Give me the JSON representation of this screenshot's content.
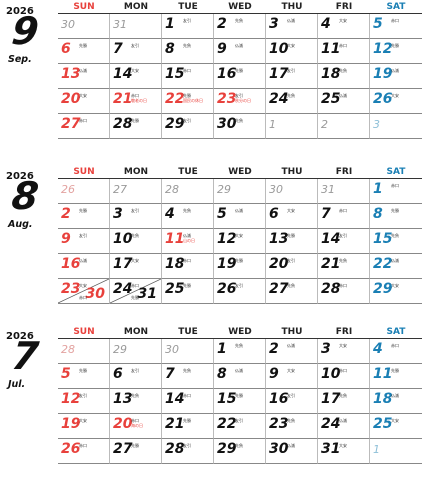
{
  "weekdays": [
    "SUN",
    "MON",
    "TUE",
    "WED",
    "THU",
    "FRI",
    "SAT"
  ],
  "months": [
    {
      "year": "2026",
      "num": "9",
      "abbr": "Sep.",
      "days": [
        {
          "d": "30",
          "c": "grey"
        },
        {
          "d": "31",
          "c": "grey"
        },
        {
          "d": "1",
          "c": "black",
          "r": "友引"
        },
        {
          "d": "2",
          "c": "black",
          "r": "先負"
        },
        {
          "d": "3",
          "c": "black",
          "r": "仏滅"
        },
        {
          "d": "4",
          "c": "black",
          "r": "大安"
        },
        {
          "d": "5",
          "c": "blue",
          "r": "赤口"
        },
        {
          "d": "6",
          "c": "red",
          "r": "先勝"
        },
        {
          "d": "7",
          "c": "black",
          "r": "友引"
        },
        {
          "d": "8",
          "c": "black",
          "r": "先負"
        },
        {
          "d": "9",
          "c": "black",
          "r": "仏滅"
        },
        {
          "d": "10",
          "c": "black",
          "r": "大安"
        },
        {
          "d": "11",
          "c": "black",
          "r": "赤口"
        },
        {
          "d": "12",
          "c": "blue",
          "r": "先勝"
        },
        {
          "d": "13",
          "c": "red",
          "r": "仏滅"
        },
        {
          "d": "14",
          "c": "black",
          "r": "大安"
        },
        {
          "d": "15",
          "c": "black",
          "r": "赤口"
        },
        {
          "d": "16",
          "c": "black",
          "r": "先勝"
        },
        {
          "d": "17",
          "c": "black",
          "r": "友引"
        },
        {
          "d": "18",
          "c": "black",
          "r": "先負"
        },
        {
          "d": "19",
          "c": "blue",
          "r": "仏滅"
        },
        {
          "d": "20",
          "c": "red",
          "r": "大安"
        },
        {
          "d": "21",
          "c": "red",
          "r": "赤口",
          "h": "敬老の日"
        },
        {
          "d": "22",
          "c": "red",
          "r": "先勝",
          "h": "国民の休日"
        },
        {
          "d": "23",
          "c": "red",
          "r": "友引",
          "h": "秋分の日"
        },
        {
          "d": "24",
          "c": "black",
          "r": "先負"
        },
        {
          "d": "25",
          "c": "black",
          "r": "仏滅"
        },
        {
          "d": "26",
          "c": "blue",
          "r": "大安"
        },
        {
          "d": "27",
          "c": "red",
          "r": "赤口"
        },
        {
          "d": "28",
          "c": "black",
          "r": "先勝"
        },
        {
          "d": "29",
          "c": "black",
          "r": "友引"
        },
        {
          "d": "30",
          "c": "black",
          "r": "先負"
        },
        {
          "d": "1",
          "c": "grey"
        },
        {
          "d": "2",
          "c": "grey"
        },
        {
          "d": "3",
          "c": "grey-blue"
        }
      ]
    },
    {
      "year": "2026",
      "num": "8",
      "abbr": "Aug.",
      "days": [
        {
          "d": "26",
          "c": "grey-red"
        },
        {
          "d": "27",
          "c": "grey"
        },
        {
          "d": "28",
          "c": "grey"
        },
        {
          "d": "29",
          "c": "grey"
        },
        {
          "d": "30",
          "c": "grey"
        },
        {
          "d": "31",
          "c": "grey"
        },
        {
          "d": "1",
          "c": "blue",
          "r": "赤口"
        },
        {
          "d": "2",
          "c": "red",
          "r": "先勝"
        },
        {
          "d": "3",
          "c": "black",
          "r": "友引"
        },
        {
          "d": "4",
          "c": "black",
          "r": "先負"
        },
        {
          "d": "5",
          "c": "black",
          "r": "仏滅"
        },
        {
          "d": "6",
          "c": "black",
          "r": "大安"
        },
        {
          "d": "7",
          "c": "black",
          "r": "赤口"
        },
        {
          "d": "8",
          "c": "blue",
          "r": "先勝"
        },
        {
          "d": "9",
          "c": "red",
          "r": "友引"
        },
        {
          "d": "10",
          "c": "black",
          "r": "先負"
        },
        {
          "d": "11",
          "c": "red",
          "r": "仏滅",
          "h": "山の日"
        },
        {
          "d": "12",
          "c": "black",
          "r": "大安"
        },
        {
          "d": "13",
          "c": "black",
          "r": "先勝"
        },
        {
          "d": "14",
          "c": "black",
          "r": "友引"
        },
        {
          "d": "15",
          "c": "blue",
          "r": "先負"
        },
        {
          "d": "16",
          "c": "red",
          "r": "仏滅"
        },
        {
          "d": "17",
          "c": "black",
          "r": "大安"
        },
        {
          "d": "18",
          "c": "black",
          "r": "赤口"
        },
        {
          "d": "19",
          "c": "black",
          "r": "先勝"
        },
        {
          "d": "20",
          "c": "black",
          "r": "友引"
        },
        {
          "d": "21",
          "c": "black",
          "r": "先負"
        },
        {
          "d": "22",
          "c": "blue",
          "r": "仏滅"
        },
        {
          "d": "23",
          "c": "red",
          "r": "大安",
          "d2": "30",
          "c2": "red",
          "r2": "赤口"
        },
        {
          "d": "24",
          "c": "black",
          "r": "赤口",
          "d2": "31",
          "c2": "black",
          "r2": "先勝"
        },
        {
          "d": "25",
          "c": "black",
          "r": "先勝"
        },
        {
          "d": "26",
          "c": "black",
          "r": "友引"
        },
        {
          "d": "27",
          "c": "black",
          "r": "先負"
        },
        {
          "d": "28",
          "c": "black",
          "r": "赤口"
        },
        {
          "d": "29",
          "c": "blue",
          "r": "大安"
        }
      ]
    },
    {
      "year": "2026",
      "num": "7",
      "abbr": "Jul.",
      "days": [
        {
          "d": "28",
          "c": "grey-red"
        },
        {
          "d": "29",
          "c": "grey"
        },
        {
          "d": "30",
          "c": "grey"
        },
        {
          "d": "1",
          "c": "black",
          "r": "先負"
        },
        {
          "d": "2",
          "c": "black",
          "r": "仏滅"
        },
        {
          "d": "3",
          "c": "black",
          "r": "大安"
        },
        {
          "d": "4",
          "c": "blue",
          "r": "赤口"
        },
        {
          "d": "5",
          "c": "red",
          "r": "先勝"
        },
        {
          "d": "6",
          "c": "black",
          "r": "友引"
        },
        {
          "d": "7",
          "c": "black",
          "r": "先負"
        },
        {
          "d": "8",
          "c": "black",
          "r": "仏滅"
        },
        {
          "d": "9",
          "c": "black",
          "r": "大安"
        },
        {
          "d": "10",
          "c": "black",
          "r": "赤口"
        },
        {
          "d": "11",
          "c": "blue",
          "r": "先勝"
        },
        {
          "d": "12",
          "c": "red",
          "r": "友引"
        },
        {
          "d": "13",
          "c": "black",
          "r": "先負"
        },
        {
          "d": "14",
          "c": "black",
          "r": "赤口"
        },
        {
          "d": "15",
          "c": "black",
          "r": "先勝"
        },
        {
          "d": "16",
          "c": "black",
          "r": "友引"
        },
        {
          "d": "17",
          "c": "black",
          "r": "先負"
        },
        {
          "d": "18",
          "c": "blue",
          "r": "仏滅"
        },
        {
          "d": "19",
          "c": "red",
          "r": "大安"
        },
        {
          "d": "20",
          "c": "red",
          "r": "赤口",
          "h": "海の日"
        },
        {
          "d": "21",
          "c": "black",
          "r": "先勝"
        },
        {
          "d": "22",
          "c": "black",
          "r": "友引"
        },
        {
          "d": "23",
          "c": "black",
          "r": "先負"
        },
        {
          "d": "24",
          "c": "black",
          "r": "仏滅"
        },
        {
          "d": "25",
          "c": "blue",
          "r": "大安"
        },
        {
          "d": "26",
          "c": "red",
          "r": "赤口"
        },
        {
          "d": "27",
          "c": "black",
          "r": "先勝"
        },
        {
          "d": "28",
          "c": "black",
          "r": "友引"
        },
        {
          "d": "29",
          "c": "black",
          "r": "先負"
        },
        {
          "d": "30",
          "c": "black",
          "r": "仏滅"
        },
        {
          "d": "31",
          "c": "black",
          "r": "大安"
        },
        {
          "d": "1",
          "c": "grey-blue"
        }
      ]
    }
  ]
}
